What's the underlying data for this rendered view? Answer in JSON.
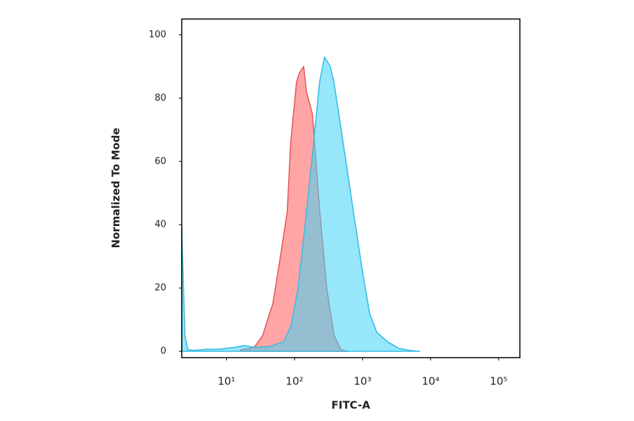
{
  "chart_data": {
    "type": "area",
    "x_label": "FITC-A",
    "y_label": "Normalized To Mode",
    "xscale": "log",
    "xlim": [
      2.2,
      205000
    ],
    "ylim": [
      -2,
      105
    ],
    "xticks": [
      {
        "value": 10,
        "label": "10¹"
      },
      {
        "value": 100,
        "label": "10²"
      },
      {
        "value": 1000,
        "label": "10³"
      },
      {
        "value": 10000,
        "label": "10⁴"
      },
      {
        "value": 100000,
        "label": "10⁵"
      }
    ],
    "yticks": [
      0,
      20,
      40,
      60,
      80,
      100
    ],
    "series": [
      {
        "color": "#e8595a",
        "fill": "#ff8f8f",
        "x": [
          16,
          21,
          26,
          34,
          43,
          48,
          62,
          78,
          88,
          107,
          118,
          136,
          150,
          183,
          233,
          297,
          380,
          484,
          617
        ],
        "values": [
          0.5,
          0.8,
          1.5,
          5,
          12,
          15,
          30,
          44,
          66,
          85,
          88,
          90,
          82,
          75,
          45,
          20,
          5,
          0.5,
          0
        ]
      },
      {
        "color": "#38bde3",
        "fill": "#3fd4f5",
        "x": [
          2.2,
          2.45,
          2.7,
          3.36,
          4.83,
          7.85,
          12.7,
          18.3,
          26.3,
          42.8,
          69.5,
          88.5,
          113,
          143,
          183,
          233,
          276,
          335,
          380,
          484,
          617,
          785,
          1000,
          1270,
          1620,
          2330,
          3350,
          4810,
          6920
        ],
        "values": [
          39,
          5,
          0.5,
          0.3,
          0.6,
          0.7,
          1.2,
          1.8,
          1.2,
          1.5,
          3,
          8,
          20,
          40,
          62,
          85,
          93,
          90,
          85,
          70,
          55,
          40,
          25,
          12,
          6,
          3,
          1,
          0.3,
          0
        ]
      }
    ]
  }
}
